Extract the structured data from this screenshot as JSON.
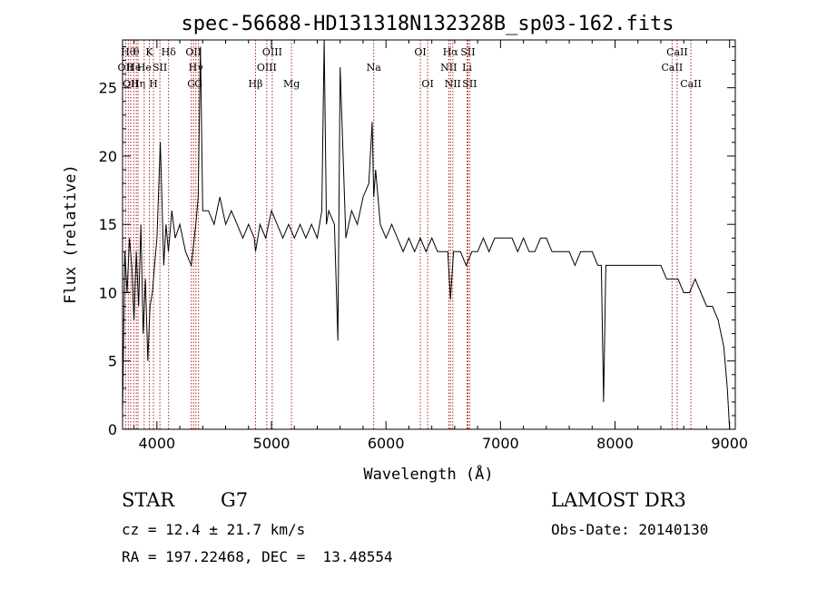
{
  "chart_data": {
    "type": "line",
    "title": "spec-56688-HD131318N132328B_sp03-162.fits",
    "xlabel": "Wavelength (Å)",
    "ylabel": "Flux (relative)",
    "xlim": [
      3700,
      9050
    ],
    "ylim": [
      0,
      28.5
    ],
    "xticks": [
      4000,
      5000,
      6000,
      7000,
      8000,
      9000
    ],
    "yticks": [
      0,
      5,
      10,
      15,
      20,
      25
    ],
    "xtick_labels": [
      "4000",
      "5000",
      "6000",
      "7000",
      "8000",
      "9000"
    ],
    "ytick_labels": [
      "0",
      "5",
      "10",
      "15",
      "20",
      "25"
    ],
    "line_color": "#000000",
    "marker_color": "#b22222",
    "series": [
      {
        "x": [
          3700,
          3720,
          3740,
          3760,
          3780,
          3800,
          3820,
          3840,
          3860,
          3880,
          3900,
          3920,
          3940,
          3960,
          3980,
          4000,
          4030,
          4060,
          4080,
          4100,
          4130,
          4160,
          4200,
          4250,
          4300,
          4340,
          4360,
          4380,
          4400,
          4450,
          4500,
          4550,
          4600,
          4650,
          4700,
          4750,
          4800,
          4850,
          4861,
          4900,
          4950,
          5000,
          5050,
          5100,
          5150,
          5200,
          5250,
          5300,
          5350,
          5400,
          5440,
          5460,
          5480,
          5500,
          5550,
          5580,
          5600,
          5650,
          5700,
          5750,
          5800,
          5850,
          5880,
          5893,
          5910,
          5950,
          6000,
          6050,
          6100,
          6150,
          6200,
          6250,
          6300,
          6350,
          6400,
          6450,
          6500,
          6540,
          6563,
          6590,
          6650,
          6700,
          6750,
          6800,
          6850,
          6900,
          6950,
          7000,
          7050,
          7100,
          7150,
          7200,
          7250,
          7300,
          7350,
          7400,
          7450,
          7500,
          7550,
          7600,
          7650,
          7700,
          7750,
          7800,
          7850,
          7880,
          7900,
          7920,
          7950,
          8000,
          8050,
          8100,
          8150,
          8200,
          8250,
          8300,
          8350,
          8400,
          8450,
          8500,
          8550,
          8600,
          8650,
          8700,
          8750,
          8800,
          8850,
          8900,
          8950,
          8980,
          9000
        ],
        "y": [
          1,
          13,
          10,
          14,
          12,
          8,
          13,
          9,
          15,
          7,
          11,
          5,
          9,
          10,
          12,
          14,
          21,
          12,
          15,
          13,
          16,
          14,
          15,
          13,
          12,
          15,
          17,
          28,
          16,
          16,
          15,
          17,
          15,
          16,
          15,
          14,
          15,
          14,
          13,
          15,
          14,
          16,
          15,
          14,
          15,
          14,
          15,
          14,
          15,
          14,
          16,
          28.5,
          15,
          16,
          15,
          6.5,
          26.5,
          14,
          16,
          15,
          17,
          18,
          22.5,
          17,
          19,
          15,
          14,
          15,
          14,
          13,
          14,
          13,
          14,
          13,
          14,
          13,
          13,
          13,
          9.5,
          13,
          13,
          12,
          13,
          13,
          14,
          13,
          14,
          14,
          14,
          14,
          13,
          14,
          13,
          13,
          14,
          14,
          13,
          13,
          13,
          13,
          12,
          13,
          13,
          13,
          12,
          12,
          2,
          12,
          12,
          12,
          12,
          12,
          12,
          12,
          12,
          12,
          12,
          12,
          11,
          11,
          11,
          10,
          10,
          11,
          10,
          9,
          9,
          8,
          6,
          3,
          0
        ]
      }
    ],
    "lines": [
      {
        "wl": 3727,
        "row": 1,
        "label": "OII"
      },
      {
        "wl": 3750,
        "row": 0,
        "label": "Hθ"
      },
      {
        "wl": 3771,
        "row": 2,
        "label": "OII"
      },
      {
        "wl": 3798,
        "row": 1,
        "label": "He"
      },
      {
        "wl": 3820,
        "row": 0,
        "label": "θ"
      },
      {
        "wl": 3835,
        "row": 2,
        "label": "Hη"
      },
      {
        "wl": 3889,
        "row": 1,
        "label": "He"
      },
      {
        "wl": 3934,
        "row": 0,
        "label": "K"
      },
      {
        "wl": 3970,
        "row": 2,
        "label": "H"
      },
      {
        "wl": 4026,
        "row": 1,
        "label": "SII"
      },
      {
        "wl": 4102,
        "row": 0,
        "label": "Hδ"
      },
      {
        "wl": 4300,
        "row": 2,
        "label": "G"
      },
      {
        "wl": 4320,
        "row": 0,
        "label": "OII"
      },
      {
        "wl": 4340,
        "row": 1,
        "label": "Hγ"
      },
      {
        "wl": 4363,
        "row": 2,
        "label": "G"
      },
      {
        "wl": 4861,
        "row": 2,
        "label": "Hβ"
      },
      {
        "wl": 4959,
        "row": 1,
        "label": "OIII"
      },
      {
        "wl": 5007,
        "row": 0,
        "label": "OIII"
      },
      {
        "wl": 5175,
        "row": 2,
        "label": "Mg"
      },
      {
        "wl": 5893,
        "row": 1,
        "label": "Na"
      },
      {
        "wl": 6300,
        "row": 0,
        "label": "OI"
      },
      {
        "wl": 6364,
        "row": 2,
        "label": "OI"
      },
      {
        "wl": 6548,
        "row": 1,
        "label": "NII"
      },
      {
        "wl": 6563,
        "row": 0,
        "label": "Hα"
      },
      {
        "wl": 6583,
        "row": 2,
        "label": "NII"
      },
      {
        "wl": 6708,
        "row": 1,
        "label": "Li"
      },
      {
        "wl": 6716,
        "row": 0,
        "label": "SII"
      },
      {
        "wl": 6731,
        "row": 2,
        "label": "SII"
      },
      {
        "wl": 8498,
        "row": 1,
        "label": "CaII"
      },
      {
        "wl": 8542,
        "row": 0,
        "label": "CaII"
      },
      {
        "wl": 8662,
        "row": 2,
        "label": "CaII"
      }
    ]
  },
  "info": {
    "object_type": "STAR",
    "subclass": "G7",
    "survey": "LAMOST DR3",
    "cz_line": "cz = 12.4 ± 21.7 km/s",
    "obs_date": "Obs-Date: 20140130",
    "coords": "RA = 197.22468, DEC =  13.48554"
  }
}
